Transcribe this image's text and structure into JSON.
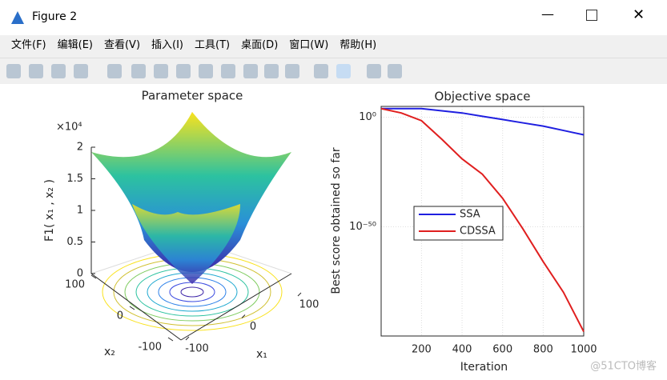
{
  "window": {
    "title": "Figure 2"
  },
  "menu": [
    "文件(F)",
    "编辑(E)",
    "查看(V)",
    "插入(I)",
    "工具(T)",
    "桌面(D)",
    "窗口(W)",
    "帮助(H)"
  ],
  "watermark": "@51CTO博客",
  "charts": [
    {
      "type": "surface3d",
      "title": "Parameter space",
      "zlabel": "F1( x₁ , x₂ )",
      "xlabel": "x₁",
      "ylabel": "x₂",
      "zexponent": "×10⁴",
      "zlim": [
        0,
        2
      ],
      "zticks": [
        0,
        0.5,
        1,
        1.5,
        2
      ],
      "xlim": [
        -100,
        100
      ],
      "xticks": [
        -100,
        0,
        100
      ],
      "ylim": [
        -100,
        100
      ],
      "yticks": [
        -100,
        0,
        100
      ]
    },
    {
      "type": "line",
      "title": "Objective space",
      "xlabel": "Iteration",
      "ylabel": "Best score obtained so far",
      "log_y": true,
      "grid": true,
      "xlim": [
        1,
        1000
      ],
      "xticks": [
        200,
        400,
        600,
        800,
        1000
      ],
      "ylim": [
        1e-100,
        100000.0
      ],
      "yticks": [
        {
          "value": 1,
          "label": "10⁰"
        },
        {
          "value": 1e-50,
          "label": "10⁻⁵⁰"
        }
      ],
      "x": [
        1,
        100,
        200,
        300,
        400,
        500,
        600,
        700,
        800,
        900,
        950,
        1000
      ],
      "series": [
        {
          "name": "SSA",
          "color": "#1f1fe0",
          "values": [
            10000,
            10000,
            10000,
            1000,
            100,
            3,
            0.1,
            0.003,
            0.0001,
            1e-06,
            1e-07,
            1e-08
          ]
        },
        {
          "name": "CDSSA",
          "color": "#e01f1f",
          "values": [
            10000,
            100,
            0.03,
            1e-10,
            1e-19,
            1e-26,
            1e-37,
            1e-51,
            1e-66,
            1e-80,
            1e-89,
            1e-98
          ]
        }
      ]
    }
  ]
}
